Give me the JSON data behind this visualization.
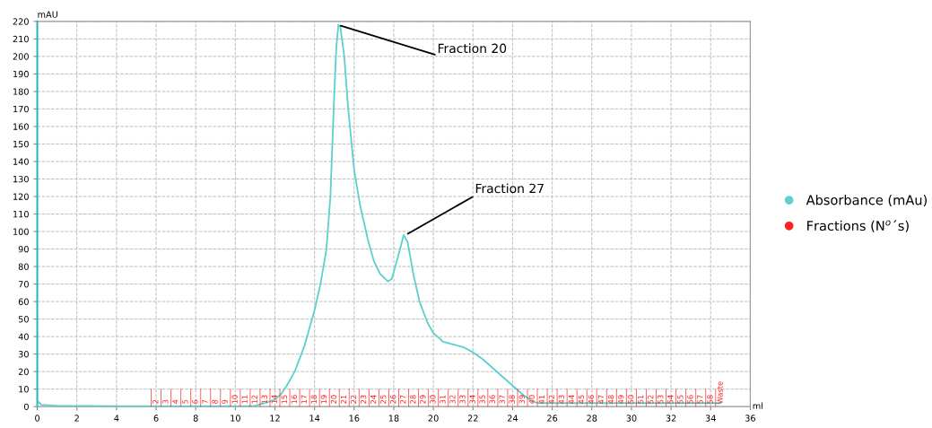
{
  "chart_data": {
    "type": "line",
    "xlabel": "ml",
    "ylabel": "mAU",
    "xlim": [
      0,
      36
    ],
    "xticks": [
      0,
      2,
      4,
      6,
      8,
      10,
      12,
      14,
      16,
      18,
      20,
      22,
      24,
      26,
      28,
      30,
      32,
      34,
      36
    ],
    "ylim": [
      0,
      220
    ],
    "yticks": [
      0,
      10,
      20,
      30,
      40,
      50,
      60,
      70,
      80,
      90,
      100,
      110,
      120,
      130,
      140,
      150,
      160,
      170,
      180,
      190,
      200,
      210,
      220
    ],
    "x2lim": [
      -10,
      62
    ],
    "x2ticks": [
      2,
      3,
      4,
      5,
      6,
      7,
      8,
      9,
      10,
      11,
      12,
      13,
      14,
      15,
      16,
      17,
      18,
      19,
      20,
      21,
      22,
      23,
      24,
      25,
      26,
      27,
      28,
      29,
      30,
      31,
      32,
      33,
      34,
      35,
      36,
      37,
      38,
      39,
      40,
      41,
      42,
      43,
      44,
      45,
      46,
      47,
      48,
      49,
      50,
      51,
      52,
      53,
      54,
      55,
      56,
      57,
      58,
      {
        "value": 59,
        "label": "Waste"
      }
    ],
    "grid": true,
    "legend": "right",
    "marker": "none",
    "line_style": "solid",
    "series": [
      {
        "name": "Absorbance (mAu)",
        "color": "#5ccfcf",
        "x": [
          0,
          0.05,
          0.2,
          1,
          4,
          8,
          10.5,
          11,
          11.5,
          12,
          12.3,
          12.6,
          13,
          13.5,
          14,
          14.3,
          14.6,
          14.8,
          15.0,
          15.1,
          15.2,
          15.3,
          15.5,
          15.7,
          16.0,
          16.3,
          16.7,
          17.0,
          17.3,
          17.7,
          17.9,
          18.2,
          18.5,
          18.7,
          19.0,
          19.3,
          19.7,
          20.0,
          20.5,
          21.0,
          21.5,
          22.0,
          22.5,
          23,
          23.5,
          24,
          24.5,
          25.0,
          25.3,
          26,
          28,
          30,
          34.5
        ],
        "values": [
          0,
          3,
          1,
          0.5,
          0.3,
          0.2,
          0.3,
          0.5,
          2,
          4,
          7,
          12,
          20,
          35,
          55,
          70,
          90,
          120,
          180,
          205,
          218,
          217,
          200,
          170,
          135,
          115,
          95,
          83,
          76,
          71.5,
          73,
          85,
          98,
          94,
          75,
          60,
          48,
          42,
          37,
          35.5,
          34,
          31,
          27,
          22,
          17,
          12,
          7,
          3,
          2,
          2,
          2,
          2,
          2
        ]
      },
      {
        "name": "Fractions (N$^{o}$´s)",
        "color": "#ff2020",
        "type": "other"
      }
    ],
    "annotations": [
      {
        "text": "Fraction 20",
        "x": 15.2,
        "y": 218
      },
      {
        "text": "Fraction 27",
        "x": 18.6,
        "y": 98
      }
    ]
  }
}
